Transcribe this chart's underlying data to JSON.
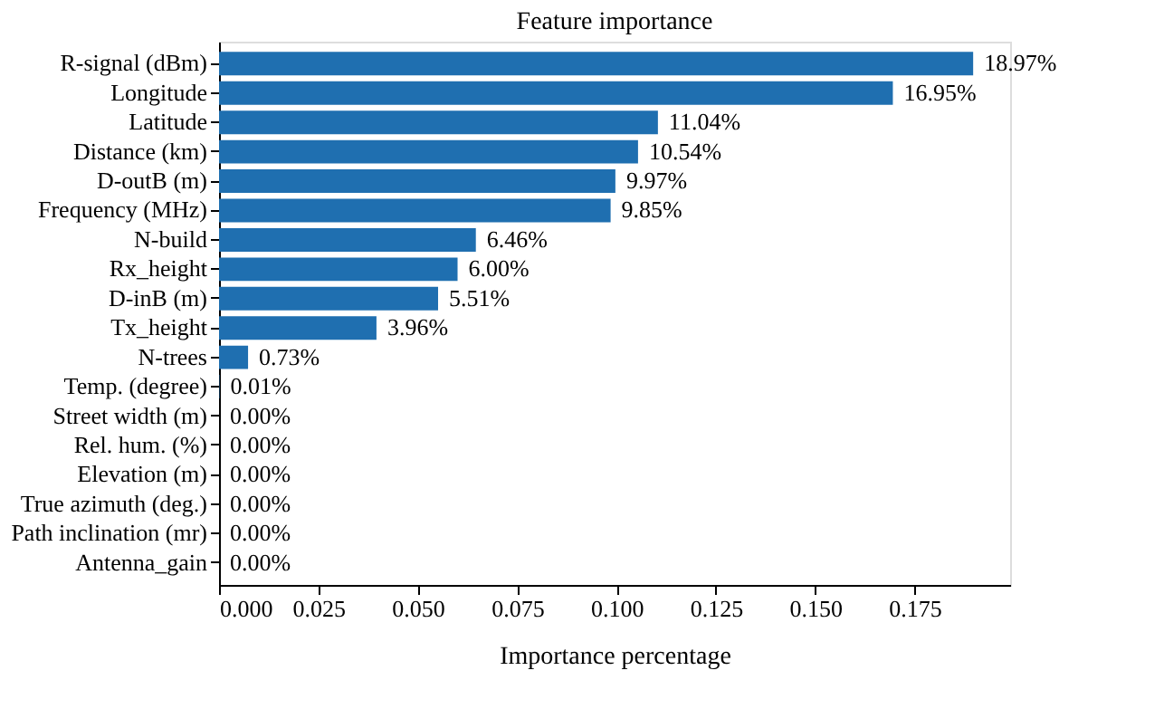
{
  "chart_data": {
    "type": "bar",
    "orientation": "horizontal",
    "title": "Feature importance",
    "xlabel": "Importance percentage",
    "categories": [
      "R-signal (dBm)",
      "Longitude",
      "Latitude",
      "Distance (km)",
      "D-outB (m)",
      "Frequency (MHz)",
      "N-build",
      "Rx_height",
      "D-inB (m)",
      "Tx_height",
      "N-trees",
      "Temp. (degree)",
      "Street width (m)",
      "Rel. hum. (%)",
      "Elevation (m)",
      "True azimuth (deg.)",
      "Path inclination (mr)",
      "Antenna_gain"
    ],
    "values": [
      0.1897,
      0.1695,
      0.1104,
      0.1054,
      0.0997,
      0.0985,
      0.0646,
      0.06,
      0.0551,
      0.0396,
      0.0073,
      0.0001,
      0,
      0,
      0,
      0,
      0,
      0
    ],
    "value_labels": [
      "18.97%",
      "16.95%",
      "11.04%",
      "10.54%",
      "9.97%",
      "9.85%",
      "6.46%",
      "6.00%",
      "5.51%",
      "3.96%",
      "0.73%",
      "0.01%",
      "0.00%",
      "0.00%",
      "0.00%",
      "0.00%",
      "0.00%",
      "0.00%"
    ],
    "color": "#1f6fb0",
    "xlim": [
      0,
      0.199
    ],
    "xticks": [
      "0.000",
      "0.025",
      "0.050",
      "0.075",
      "0.100",
      "0.125",
      "0.150",
      "0.175"
    ],
    "grid": false
  }
}
